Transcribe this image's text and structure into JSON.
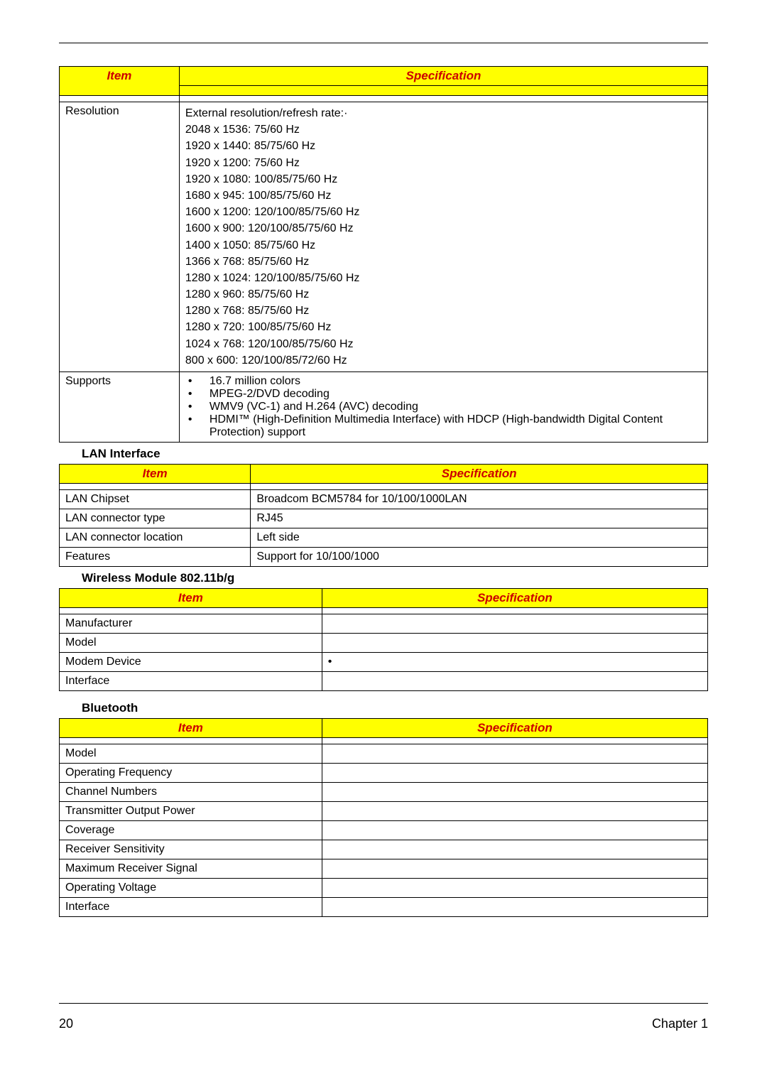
{
  "colors": {
    "header_bg": "#ffff00",
    "header_text": "#cc0000",
    "border": "#000000",
    "body_text": "#000000",
    "page_bg": "#ffffff"
  },
  "table1": {
    "header_item": "Item",
    "header_spec": "Specification",
    "col_widths": [
      "18.5%",
      "81.5%"
    ],
    "rows": [
      {
        "item": "Resolution",
        "lines": [
          "External resolution/refresh rate:·",
          "2048 x 1536: 75/60 Hz",
          "1920 x 1440: 85/75/60 Hz",
          "1920 x 1200: 75/60 Hz",
          "1920 x 1080: 100/85/75/60 Hz",
          "1680 x 945: 100/85/75/60 Hz",
          "1600 x 1200: 120/100/85/75/60 Hz",
          "1600 x 900: 120/100/85/75/60 Hz",
          "1400 x 1050: 85/75/60 Hz",
          "1366 x 768: 85/75/60 Hz",
          "1280 x 1024: 120/100/85/75/60 Hz",
          "1280 x 960: 85/75/60 Hz",
          "1280 x 768: 85/75/60 Hz",
          "1280 x 720: 100/85/75/60 Hz",
          "1024 x 768: 120/100/85/75/60 Hz",
          "800 x 600: 120/100/85/72/60 Hz"
        ]
      },
      {
        "item": "Supports",
        "bullets": [
          "16.7 million colors",
          "MPEG-2/DVD decoding",
          "WMV9 (VC-1) and H.264 (AVC) decoding",
          "HDMI™ (High-Definition Multimedia Interface) with HDCP (High-bandwidth Digital Content Protection) support"
        ]
      }
    ]
  },
  "section_lan": {
    "title": "LAN Interface",
    "header_item": "Item",
    "header_spec": "Specification",
    "col_widths": [
      "29.5%",
      "70.5%"
    ],
    "rows": [
      {
        "item": "LAN Chipset",
        "spec": "Broadcom BCM5784 for 10/100/1000LAN"
      },
      {
        "item": "LAN connector type",
        "spec": "RJ45"
      },
      {
        "item": "LAN connector location",
        "spec": "Left side"
      },
      {
        "item": "Features",
        "spec": "Support for 10/100/1000"
      }
    ]
  },
  "section_wireless": {
    "title": "Wireless Module 802.11b/g",
    "header_item": "Item",
    "header_spec": "Specification",
    "col_widths": [
      "40.5%",
      "59.5%"
    ],
    "rows": [
      {
        "item": "Manufacturer",
        "spec": ""
      },
      {
        "item": "Model",
        "spec": ""
      },
      {
        "item": "Modem Device",
        "spec": "•"
      },
      {
        "item": "Interface",
        "spec": ""
      }
    ]
  },
  "section_bluetooth": {
    "title": "Bluetooth",
    "header_item": "Item",
    "header_spec": "Specification",
    "col_widths": [
      "40.5%",
      "59.5%"
    ],
    "rows": [
      {
        "item": "Model",
        "spec": ""
      },
      {
        "item": "Operating Frequency",
        "spec": ""
      },
      {
        "item": "Channel Numbers",
        "spec": ""
      },
      {
        "item": "Transmitter Output Power",
        "spec": ""
      },
      {
        "item": "Coverage",
        "spec": ""
      },
      {
        "item": "Receiver Sensitivity",
        "spec": ""
      },
      {
        "item": "Maximum Receiver Signal",
        "spec": ""
      },
      {
        "item": "Operating Voltage",
        "spec": ""
      },
      {
        "item": "Interface",
        "spec": ""
      }
    ]
  },
  "footer": {
    "page_number": "20",
    "chapter": "Chapter 1"
  }
}
